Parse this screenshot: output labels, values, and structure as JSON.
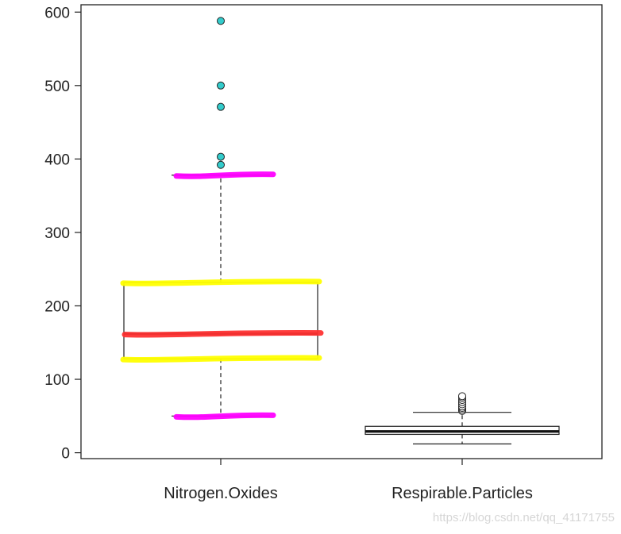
{
  "chart_data": {
    "type": "boxplot",
    "categories": [
      "Nitrogen.Oxides",
      "Respirable.Particles"
    ],
    "ylim": [
      -8,
      610
    ],
    "yticks": [
      0,
      100,
      200,
      300,
      400,
      500,
      600
    ],
    "boxes": [
      {
        "name": "Nitrogen.Oxides",
        "whisker_low": 50,
        "q1": 128,
        "median": 162,
        "q3": 232,
        "whisker_high": 378,
        "outliers": [
          392,
          403,
          471,
          500,
          588
        ]
      },
      {
        "name": "Respirable.Particles",
        "whisker_low": 12,
        "q1": 25,
        "median": 29,
        "q3": 36,
        "whisker_high": 55,
        "outliers": [
          57,
          59,
          61,
          63,
          66,
          69,
          72,
          75,
          77
        ]
      }
    ],
    "annotations": {
      "whisker_marker_color": "#ff00ff",
      "quartile_marker_color": "#ffff00",
      "median_marker_color": "#ff3333",
      "outlier_fill": "#33cccc"
    }
  },
  "watermark": "https://blog.csdn.net/qq_41171755"
}
